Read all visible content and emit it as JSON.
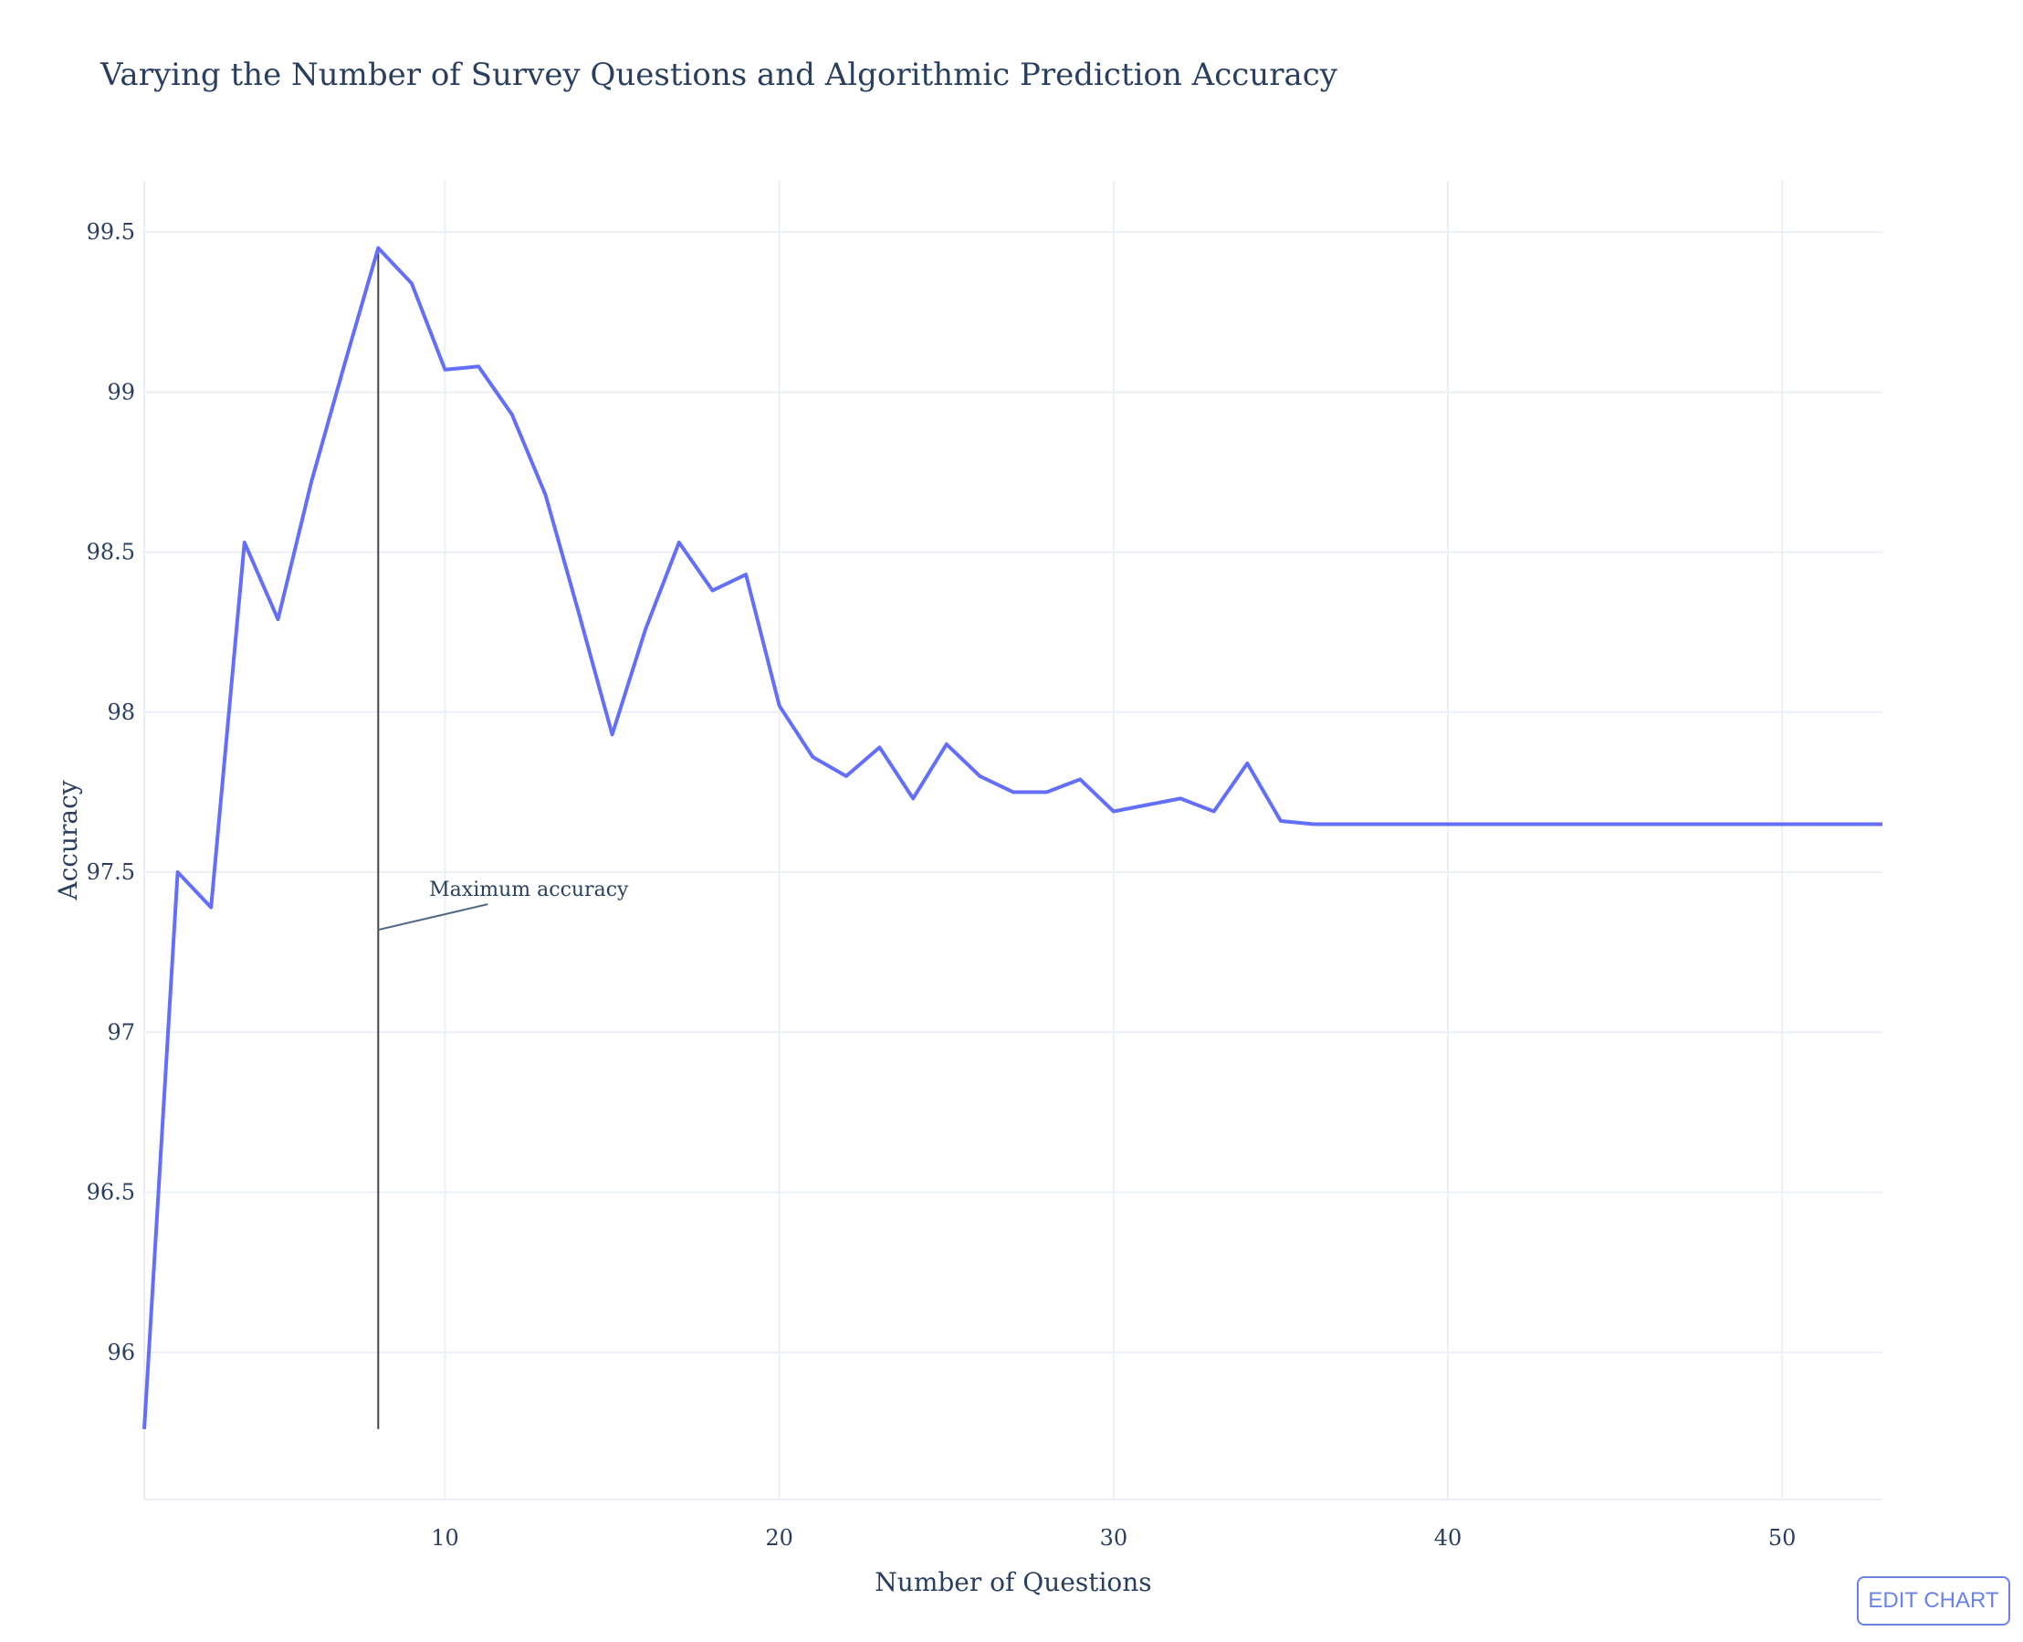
{
  "title": "Varying the Number of Survey Questions and Algorithmic Prediction Accuracy",
  "edit_chart_label": "EDIT CHART",
  "colors": {
    "line": "#636efa",
    "grid": "#ebf0f8",
    "text": "#2a3f5f",
    "marker_line": "#444444"
  },
  "chart_data": {
    "type": "line",
    "title": "Varying the Number of Survey Questions and Algorithmic Prediction Accuracy",
    "xlabel": "Number of Questions",
    "ylabel": "Accuracy",
    "xlim": [
      1,
      53
    ],
    "ylim": [
      95.54,
      99.66
    ],
    "xticks": [
      10,
      20,
      30,
      40,
      50
    ],
    "yticks": [
      96,
      96.5,
      97,
      97.5,
      98,
      98.5,
      99,
      99.5
    ],
    "ytick_labels": [
      "96",
      "96.5",
      "97",
      "97.5",
      "98",
      "98.5",
      "99",
      "99.5"
    ],
    "grid": true,
    "x": [
      1,
      2,
      3,
      4,
      5,
      6,
      7,
      8,
      9,
      10,
      11,
      12,
      13,
      14,
      15,
      16,
      17,
      18,
      19,
      20,
      21,
      22,
      23,
      24,
      25,
      26,
      27,
      28,
      29,
      30,
      31,
      32,
      33,
      34,
      35,
      36,
      53
    ],
    "y": [
      95.76,
      97.5,
      97.39,
      98.53,
      98.29,
      98.72,
      99.09,
      99.45,
      99.34,
      99.07,
      99.08,
      98.93,
      98.68,
      98.31,
      97.93,
      98.26,
      98.53,
      98.38,
      98.43,
      98.02,
      97.86,
      97.8,
      97.89,
      97.73,
      97.9,
      97.8,
      97.75,
      97.75,
      97.79,
      97.69,
      97.71,
      97.73,
      97.69,
      97.84,
      97.66,
      97.65,
      97.65
    ],
    "vertical_line": {
      "x": 8,
      "y_range": [
        95.76,
        99.45
      ]
    },
    "annotation": {
      "text": "Maximum accuracy",
      "x": 8,
      "y": 97.32
    }
  }
}
